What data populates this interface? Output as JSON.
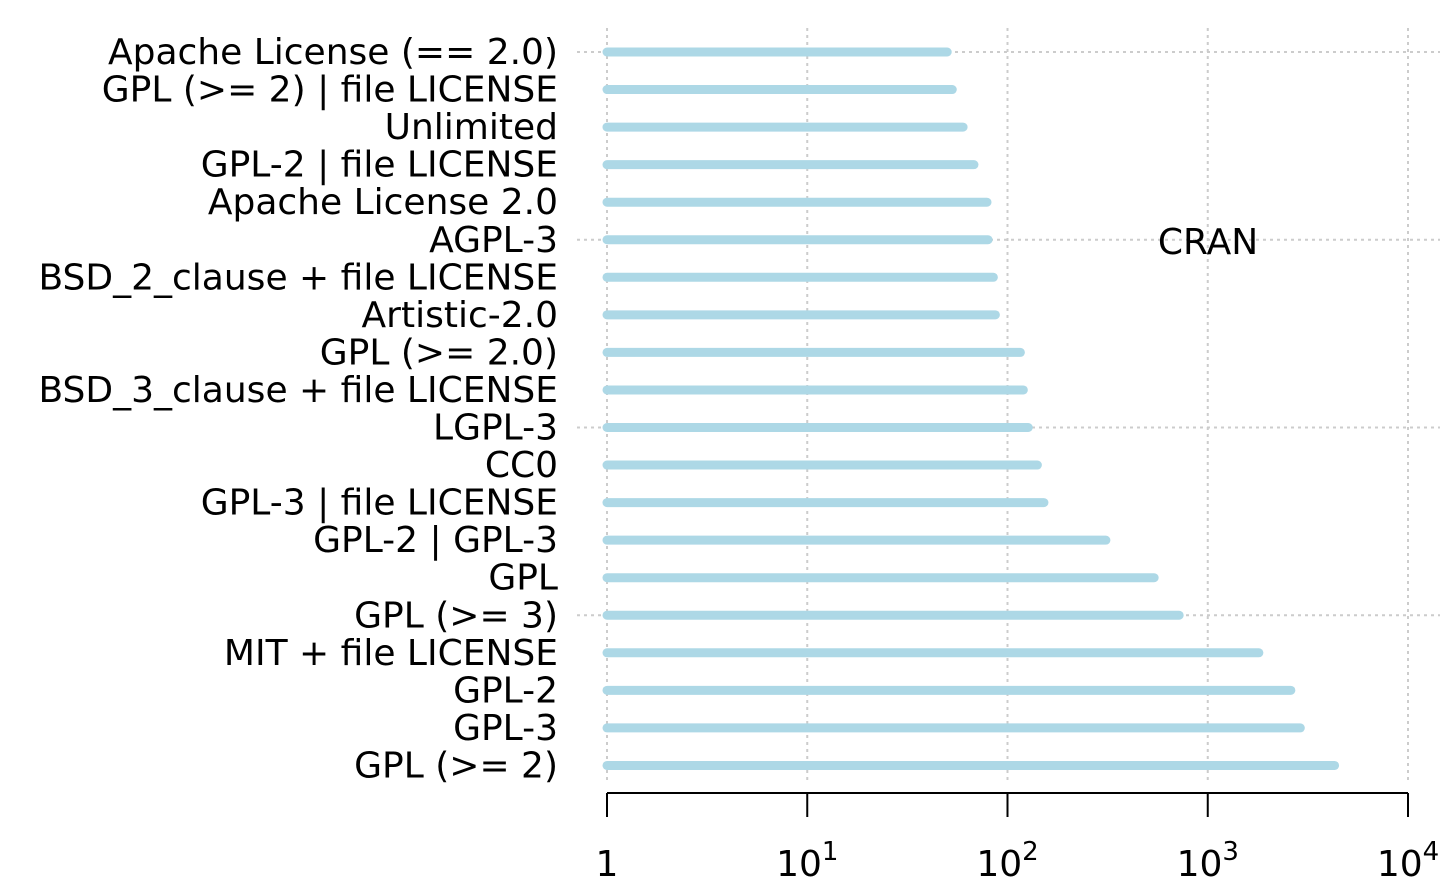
{
  "chart_data": {
    "type": "bar",
    "orientation": "horizontal",
    "x_scale": "log",
    "xlim": [
      1,
      10000
    ],
    "grid": true,
    "annotation": "CRAN",
    "bar_color": "#add8e6",
    "x_ticks": [
      {
        "value": 1,
        "base": "1",
        "exp": ""
      },
      {
        "value": 10,
        "base": "10",
        "exp": "1"
      },
      {
        "value": 100,
        "base": "10",
        "exp": "2"
      },
      {
        "value": 1000,
        "base": "10",
        "exp": "3"
      },
      {
        "value": 10000,
        "base": "10",
        "exp": "4"
      }
    ],
    "categories": [
      "Apache License (== 2.0)",
      "GPL (>= 2) | file LICENSE",
      "Unlimited",
      "GPL-2 | file LICENSE",
      "Apache License 2.0",
      "AGPL-3",
      "BSD_2_clause + file LICENSE",
      "Artistic-2.0",
      "GPL (>= 2.0)",
      "BSD_3_clause + file LICENSE",
      "LGPL-3",
      "CC0",
      "GPL-3 | file LICENSE",
      "GPL-2 | GPL-3",
      "GPL",
      "GPL (>= 3)",
      "MIT + file LICENSE",
      "GPL-2",
      "GPL-3",
      "GPL (>= 2)"
    ],
    "values": [
      50,
      53,
      60,
      68,
      79,
      80,
      85,
      87,
      116,
      120,
      127,
      141,
      152,
      310,
      540,
      720,
      1800,
      2600,
      2900,
      4300
    ]
  }
}
